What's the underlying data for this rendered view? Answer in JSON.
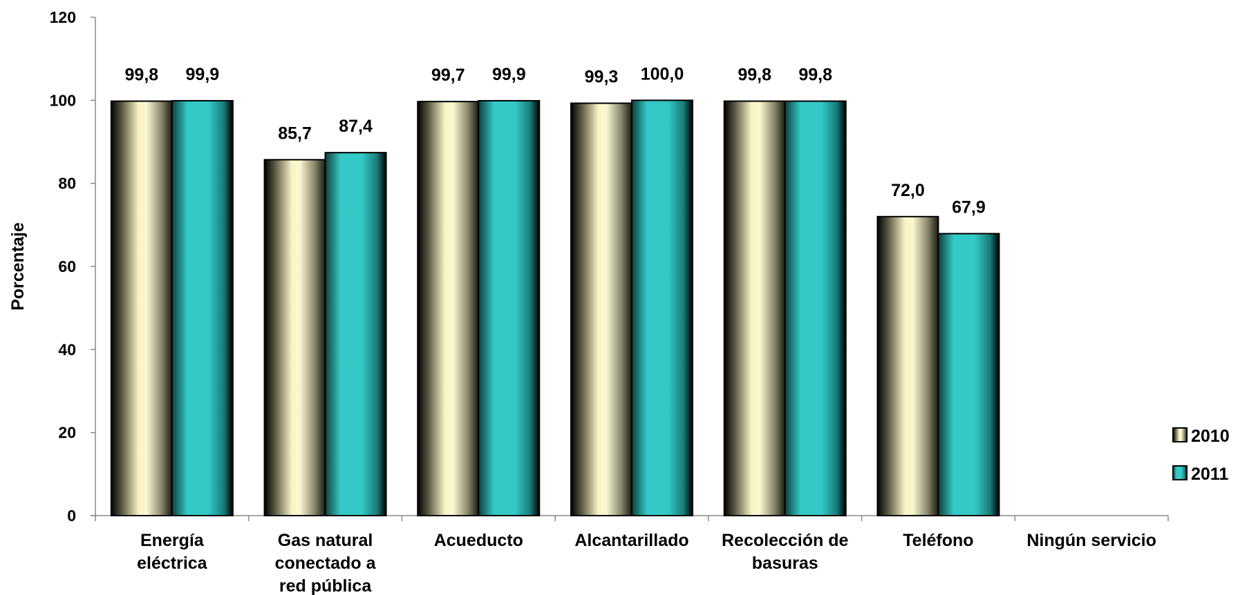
{
  "chart_data": {
    "type": "bar",
    "title": "",
    "xlabel": "",
    "ylabel": "Porcentaje",
    "ylim": [
      0,
      120
    ],
    "yticks": [
      0,
      20,
      40,
      60,
      80,
      100,
      120
    ],
    "grid": false,
    "legend_position": "right",
    "categories": [
      [
        "Energía",
        "eléctrica"
      ],
      [
        "Gas natural",
        "conectado a",
        "red pública"
      ],
      [
        "Acueducto"
      ],
      [
        "Alcantarillado"
      ],
      [
        "Recolección de",
        "basuras"
      ],
      [
        "Teléfono"
      ],
      [
        "Ningún servicio"
      ]
    ],
    "series": [
      {
        "name": "2010",
        "color": "#f8f4c4",
        "values": [
          99.8,
          85.7,
          99.7,
          99.3,
          99.8,
          72.0,
          null
        ],
        "labels": [
          "99,8",
          "85,7",
          "99,7",
          "99,3",
          "99,8",
          "72,0",
          ""
        ]
      },
      {
        "name": "2011",
        "color": "#33c9c6",
        "values": [
          99.9,
          87.4,
          99.9,
          100.0,
          99.8,
          67.9,
          null
        ],
        "labels": [
          "99,9",
          "87,4",
          "99,9",
          "100,0",
          "99,8",
          "67,9",
          ""
        ]
      }
    ]
  }
}
